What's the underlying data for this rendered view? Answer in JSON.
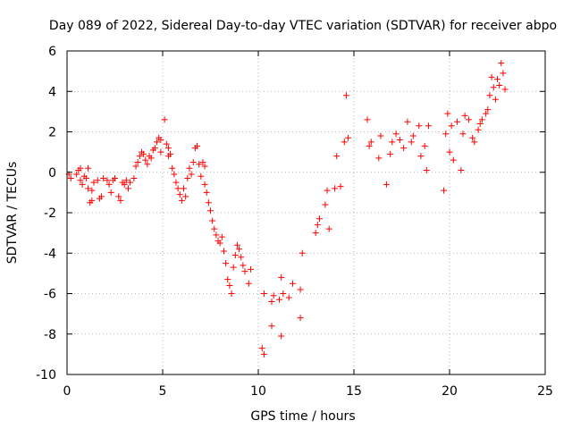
{
  "chart_data": {
    "type": "scatter",
    "title": "Day 089 of 2022, Sidereal Day-to-day VTEC variation (SDTVAR) for receiver abpo",
    "xlabel": "GPS time / hours",
    "ylabel": "SDTVAR / TECUs",
    "xlim": [
      0,
      25
    ],
    "ylim": [
      -10,
      6
    ],
    "xticks": [
      0,
      5,
      10,
      15,
      20,
      25
    ],
    "yticks": [
      -10,
      -8,
      -6,
      -4,
      -2,
      0,
      2,
      4,
      6
    ],
    "xtick_labels": [
      "0",
      "5",
      "10",
      "15",
      "20",
      "25"
    ],
    "ytick_labels": [
      "-10",
      "-8",
      "-6",
      "-4",
      "-2",
      "0",
      "2",
      "4",
      "6"
    ],
    "grid": true,
    "marker": "+",
    "color": "#ff0000",
    "series": [
      {
        "name": "SDTVAR",
        "points": [
          [
            0.1,
            -0.1
          ],
          [
            0.2,
            -0.3
          ],
          [
            0.5,
            -0.1
          ],
          [
            0.6,
            0.1
          ],
          [
            0.7,
            0.2
          ],
          [
            0.7,
            -0.4
          ],
          [
            0.8,
            -0.6
          ],
          [
            0.9,
            -0.2
          ],
          [
            1.0,
            -0.3
          ],
          [
            1.1,
            -0.8
          ],
          [
            1.1,
            0.2
          ],
          [
            1.2,
            -1.5
          ],
          [
            1.3,
            -1.4
          ],
          [
            1.3,
            -0.9
          ],
          [
            1.4,
            -0.5
          ],
          [
            1.6,
            -0.4
          ],
          [
            1.7,
            -1.3
          ],
          [
            1.8,
            -1.2
          ],
          [
            1.9,
            -0.3
          ],
          [
            2.1,
            -0.4
          ],
          [
            2.2,
            -0.6
          ],
          [
            2.3,
            -1.0
          ],
          [
            2.4,
            -0.4
          ],
          [
            2.5,
            -0.3
          ],
          [
            2.7,
            -1.2
          ],
          [
            2.8,
            -1.4
          ],
          [
            2.9,
            -0.5
          ],
          [
            3.0,
            -0.6
          ],
          [
            3.1,
            -0.4
          ],
          [
            3.2,
            -0.8
          ],
          [
            3.3,
            -0.5
          ],
          [
            3.5,
            -0.3
          ],
          [
            3.6,
            0.3
          ],
          [
            3.7,
            0.5
          ],
          [
            3.8,
            0.8
          ],
          [
            3.9,
            1.0
          ],
          [
            4.0,
            0.9
          ],
          [
            4.1,
            0.6
          ],
          [
            4.2,
            0.4
          ],
          [
            4.3,
            0.8
          ],
          [
            4.4,
            0.7
          ],
          [
            4.5,
            1.1
          ],
          [
            4.6,
            1.2
          ],
          [
            4.7,
            1.5
          ],
          [
            4.8,
            1.7
          ],
          [
            4.9,
            1.6
          ],
          [
            4.9,
            1.0
          ],
          [
            5.1,
            2.6
          ],
          [
            5.2,
            1.4
          ],
          [
            5.3,
            1.2
          ],
          [
            5.3,
            0.8
          ],
          [
            5.4,
            0.9
          ],
          [
            5.5,
            0.2
          ],
          [
            5.6,
            -0.1
          ],
          [
            5.7,
            -0.5
          ],
          [
            5.8,
            -0.8
          ],
          [
            5.9,
            -1.1
          ],
          [
            6.0,
            -1.4
          ],
          [
            6.1,
            -0.8
          ],
          [
            6.2,
            -1.2
          ],
          [
            6.3,
            -0.3
          ],
          [
            6.4,
            0.2
          ],
          [
            6.5,
            -0.1
          ],
          [
            6.6,
            0.5
          ],
          [
            6.7,
            1.2
          ],
          [
            6.8,
            1.3
          ],
          [
            6.9,
            0.4
          ],
          [
            7.0,
            -0.2
          ],
          [
            7.1,
            0.5
          ],
          [
            7.2,
            0.3
          ],
          [
            7.2,
            -0.6
          ],
          [
            7.3,
            -1.0
          ],
          [
            7.4,
            -1.5
          ],
          [
            7.5,
            -1.9
          ],
          [
            7.6,
            -2.4
          ],
          [
            7.7,
            -2.8
          ],
          [
            7.8,
            -3.1
          ],
          [
            7.9,
            -3.4
          ],
          [
            8.0,
            -3.5
          ],
          [
            8.1,
            -3.2
          ],
          [
            8.2,
            -3.9
          ],
          [
            8.3,
            -4.5
          ],
          [
            8.4,
            -5.3
          ],
          [
            8.5,
            -5.6
          ],
          [
            8.6,
            -6.0
          ],
          [
            8.7,
            -4.7
          ],
          [
            8.8,
            -4.1
          ],
          [
            8.9,
            -3.6
          ],
          [
            9.0,
            -3.8
          ],
          [
            9.1,
            -4.2
          ],
          [
            9.2,
            -4.6
          ],
          [
            9.3,
            -4.9
          ],
          [
            9.5,
            -5.5
          ],
          [
            9.6,
            -4.8
          ],
          [
            10.2,
            -8.7
          ],
          [
            10.3,
            -9.0
          ],
          [
            10.3,
            -6.0
          ],
          [
            10.7,
            -6.4
          ],
          [
            10.7,
            -7.6
          ],
          [
            10.8,
            -6.1
          ],
          [
            11.1,
            -6.3
          ],
          [
            11.2,
            -5.2
          ],
          [
            11.2,
            -8.1
          ],
          [
            11.3,
            -6.0
          ],
          [
            11.6,
            -6.2
          ],
          [
            11.8,
            -5.5
          ],
          [
            12.2,
            -7.2
          ],
          [
            12.2,
            -5.8
          ],
          [
            12.3,
            -4.0
          ],
          [
            13.0,
            -3.0
          ],
          [
            13.1,
            -2.6
          ],
          [
            13.2,
            -2.3
          ],
          [
            13.5,
            -1.6
          ],
          [
            13.6,
            -0.9
          ],
          [
            13.7,
            -2.8
          ],
          [
            14.0,
            -0.8
          ],
          [
            14.1,
            0.8
          ],
          [
            14.3,
            -0.7
          ],
          [
            14.5,
            1.5
          ],
          [
            14.6,
            3.8
          ],
          [
            14.7,
            1.7
          ],
          [
            15.7,
            2.6
          ],
          [
            15.8,
            1.3
          ],
          [
            15.9,
            1.5
          ],
          [
            16.3,
            0.7
          ],
          [
            16.4,
            1.8
          ],
          [
            16.7,
            -0.6
          ],
          [
            16.9,
            0.9
          ],
          [
            17.0,
            1.5
          ],
          [
            17.2,
            1.9
          ],
          [
            17.4,
            1.6
          ],
          [
            17.6,
            1.2
          ],
          [
            17.8,
            2.5
          ],
          [
            18.0,
            1.5
          ],
          [
            18.1,
            1.8
          ],
          [
            18.4,
            2.3
          ],
          [
            18.5,
            0.8
          ],
          [
            18.7,
            1.3
          ],
          [
            18.8,
            0.1
          ],
          [
            18.9,
            2.3
          ],
          [
            19.7,
            -0.9
          ],
          [
            19.8,
            1.9
          ],
          [
            19.9,
            2.9
          ],
          [
            20.0,
            1.0
          ],
          [
            20.1,
            2.3
          ],
          [
            20.2,
            0.6
          ],
          [
            20.4,
            2.5
          ],
          [
            20.6,
            0.1
          ],
          [
            20.7,
            1.9
          ],
          [
            20.8,
            2.8
          ],
          [
            21.0,
            2.6
          ],
          [
            21.2,
            1.7
          ],
          [
            21.3,
            1.5
          ],
          [
            21.5,
            2.1
          ],
          [
            21.6,
            2.4
          ],
          [
            21.7,
            2.6
          ],
          [
            21.9,
            2.9
          ],
          [
            22.0,
            3.1
          ],
          [
            22.1,
            3.8
          ],
          [
            22.2,
            4.7
          ],
          [
            22.3,
            4.2
          ],
          [
            22.4,
            3.6
          ],
          [
            22.5,
            4.6
          ],
          [
            22.6,
            4.3
          ],
          [
            22.7,
            5.4
          ],
          [
            22.8,
            4.9
          ],
          [
            22.9,
            4.1
          ]
        ]
      }
    ]
  }
}
